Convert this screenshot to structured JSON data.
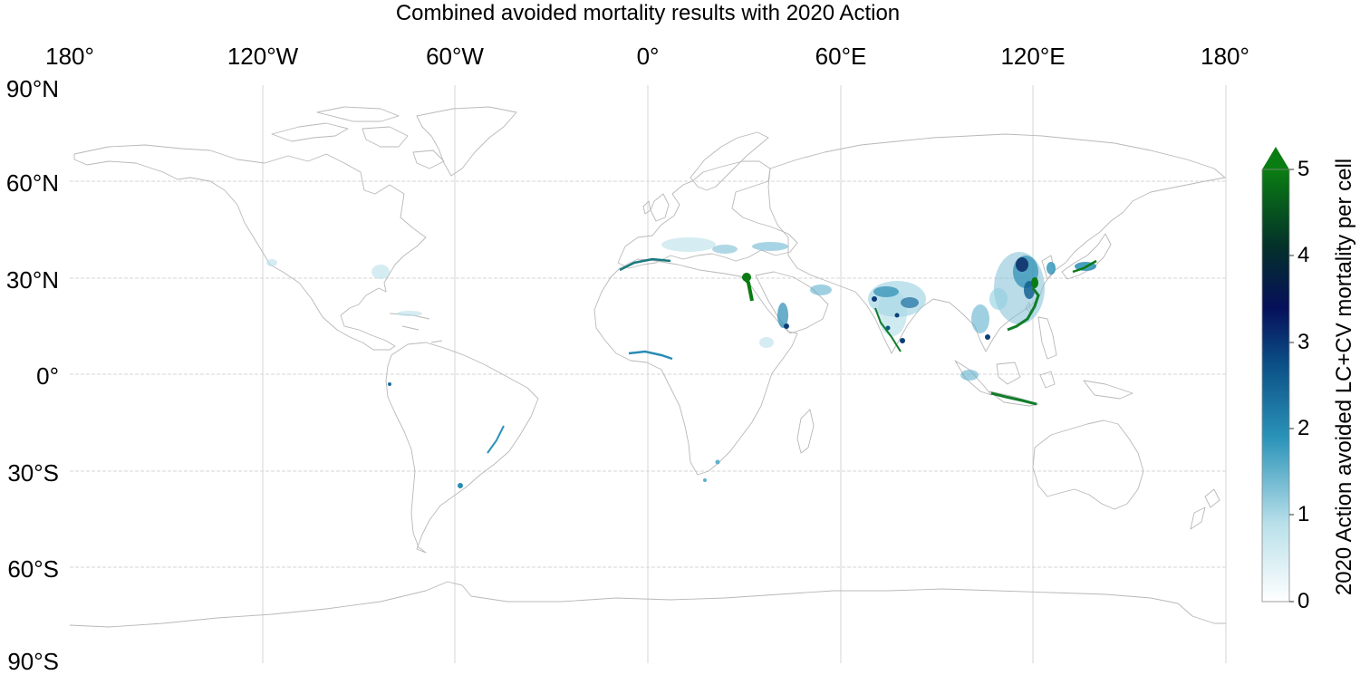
{
  "title": "Combined avoided mortality results with 2020 Action",
  "map": {
    "projection": "equirectangular",
    "lon_range": [
      -180,
      180
    ],
    "lat_range": [
      -90,
      90
    ],
    "lon_labels": [
      "180°",
      "120°W",
      "60°W",
      "0°",
      "60°E",
      "120°E",
      "180°"
    ],
    "lat_labels": [
      "90°N",
      "60°N",
      "30°N",
      "0°",
      "30°S",
      "60°S",
      "90°S"
    ],
    "grid": true,
    "coastline_color": "#b8b8b8",
    "grid_color": "#d6d6d6"
  },
  "colorbar": {
    "label": "2020 Action avoided LC+CV mortality per cell",
    "ticks": [
      "0",
      "1",
      "2",
      "3",
      "4",
      "5"
    ],
    "range": [
      0,
      5
    ],
    "extend": "max",
    "colors": [
      "#ffffff",
      "#9fd0df",
      "#1a86ae",
      "#0c5a8c",
      "#071a5a",
      "#033a28",
      "#0a7a12"
    ]
  }
}
